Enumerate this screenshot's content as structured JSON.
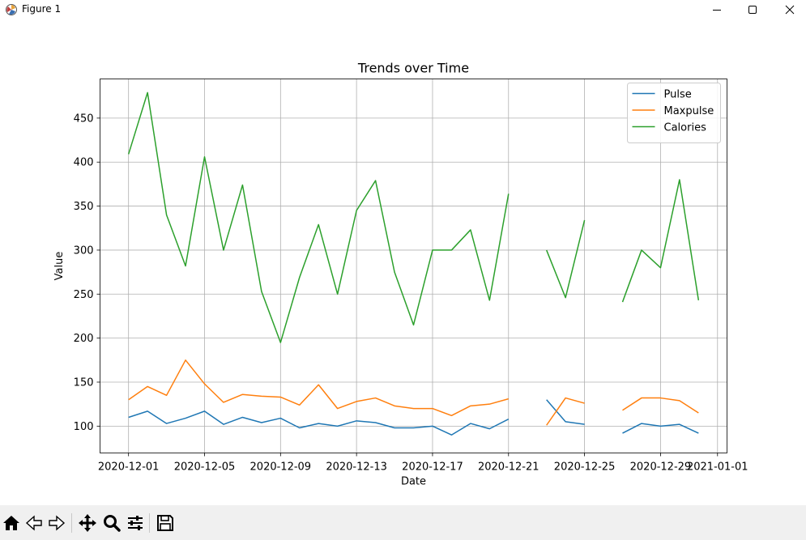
{
  "window": {
    "title": "Figure 1"
  },
  "toolbar": {
    "buttons": [
      {
        "name": "home-icon"
      },
      {
        "name": "back-icon"
      },
      {
        "name": "forward-icon"
      },
      {
        "name": "pan-icon"
      },
      {
        "name": "zoom-icon"
      },
      {
        "name": "configure-icon"
      },
      {
        "name": "save-icon"
      }
    ]
  },
  "chart_data": {
    "type": "line",
    "title": "Trends over Time",
    "xlabel": "Date",
    "ylabel": "Value",
    "x": [
      "2020-12-01",
      "2020-12-02",
      "2020-12-03",
      "2020-12-04",
      "2020-12-05",
      "2020-12-06",
      "2020-12-07",
      "2020-12-08",
      "2020-12-09",
      "2020-12-10",
      "2020-12-11",
      "2020-12-12",
      "2020-12-13",
      "2020-12-14",
      "2020-12-15",
      "2020-12-16",
      "2020-12-17",
      "2020-12-18",
      "2020-12-19",
      "2020-12-20",
      "2020-12-21",
      "2020-12-22",
      "2020-12-23",
      "2020-12-24",
      "2020-12-25",
      "2020-12-26",
      "2020-12-27",
      "2020-12-28",
      "2020-12-29",
      "2020-12-30",
      "2020-12-31"
    ],
    "series": [
      {
        "name": "Pulse",
        "color": "#1f77b4",
        "values": [
          110,
          117,
          103,
          109,
          117,
          102,
          110,
          104,
          109,
          98,
          103,
          100,
          106,
          104,
          98,
          98,
          100,
          90,
          103,
          97,
          108,
          null,
          130,
          105,
          102,
          null,
          92,
          103,
          100,
          102,
          92
        ]
      },
      {
        "name": "Maxpulse",
        "color": "#ff7f0e",
        "values": [
          130,
          145,
          135,
          175,
          148,
          127,
          136,
          134,
          133,
          124,
          147,
          120,
          128,
          132,
          123,
          120,
          120,
          112,
          123,
          125,
          131,
          null,
          101,
          132,
          126,
          null,
          118,
          132,
          132,
          129,
          115
        ]
      },
      {
        "name": "Calories",
        "color": "#2ca02c",
        "values": [
          409,
          479,
          340,
          282,
          406,
          300,
          374,
          253,
          195,
          269,
          329,
          250,
          345,
          379,
          275,
          215,
          300,
          300,
          323,
          243,
          364,
          null,
          300,
          246,
          334,
          null,
          241,
          300,
          280,
          380,
          243
        ]
      }
    ],
    "xticks": [
      "2020-12-01",
      "2020-12-05",
      "2020-12-09",
      "2020-12-13",
      "2020-12-17",
      "2020-12-21",
      "2020-12-25",
      "2020-12-29",
      "2021-01-01"
    ],
    "yticks": [
      100,
      150,
      200,
      250,
      300,
      350,
      400,
      450
    ],
    "ylim": [
      69.5,
      494.5
    ],
    "xlim": [
      "2020-11-29.5",
      "2021-01-01.5"
    ],
    "grid": true,
    "legend": "top-right"
  }
}
